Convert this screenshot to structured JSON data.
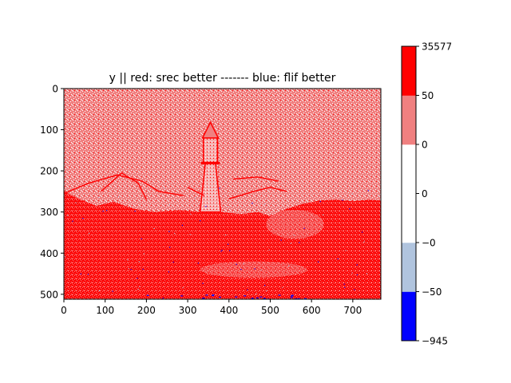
{
  "chart_data": {
    "type": "heatmap",
    "title": "y || red: srec better ------- blue: flif better",
    "xlabel": "",
    "ylabel": "",
    "x_range": [
      0,
      768
    ],
    "y_range": [
      512,
      0
    ],
    "x_ticks": [
      0,
      100,
      200,
      300,
      400,
      500,
      600,
      700
    ],
    "y_ticks": [
      0,
      100,
      200,
      300,
      400,
      500
    ],
    "x_tick_labels": [
      "0",
      "100",
      "200",
      "300",
      "400",
      "500",
      "600",
      "700"
    ],
    "y_tick_labels": [
      "0",
      "100",
      "200",
      "300",
      "400",
      "500"
    ],
    "grid": false,
    "colorbar": {
      "position": "right",
      "boundaries": [
        -945,
        -50,
        0,
        0,
        0,
        50,
        35577
      ],
      "tick_labels": [
        "35577",
        "50",
        "0",
        "0",
        "−0",
        "−50",
        "−945"
      ],
      "colors": [
        "#0000ff",
        "#b0c4de",
        "#ffffff",
        "#ffffff",
        "#f08080",
        "#ff0000"
      ]
    },
    "regions": [
      {
        "name": "sky",
        "y": [
          0,
          250
        ],
        "dominant_color": "#f08080",
        "mix": [
          "#f08080",
          "#ffffff"
        ]
      },
      {
        "name": "lighthouse",
        "x": [
          320,
          380
        ],
        "y": [
          80,
          300
        ],
        "dominant_color": "#ffffff"
      },
      {
        "name": "rocks-foreground",
        "y": [
          250,
          512
        ],
        "dominant_color": "#ff0000",
        "mix": [
          "#ff0000",
          "#f08080"
        ]
      }
    ]
  }
}
